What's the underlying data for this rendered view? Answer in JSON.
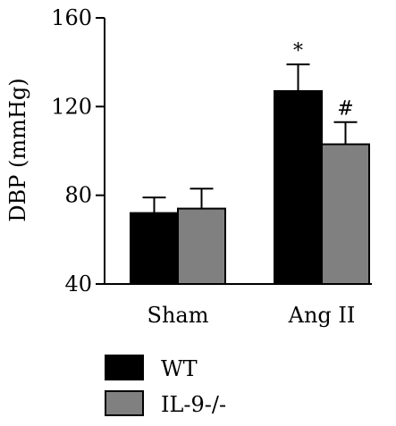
{
  "chart_data": {
    "type": "bar",
    "title": "",
    "ylabel": "DBP (mmHg)",
    "xlabel": "",
    "ylim": [
      40,
      160
    ],
    "yticks": [
      40,
      80,
      120,
      160
    ],
    "categories": [
      "Sham",
      "Ang II"
    ],
    "series": [
      {
        "name": "WT",
        "color": "#000000",
        "values": [
          72,
          127
        ],
        "errors": [
          7,
          12
        ],
        "annotations": [
          "",
          "*"
        ]
      },
      {
        "name": "IL-9-/-",
        "color": "#808080",
        "values": [
          74,
          103
        ],
        "errors": [
          9,
          10
        ],
        "annotations": [
          "",
          "#"
        ]
      }
    ],
    "legend_position": "bottom-left",
    "grid": false
  }
}
